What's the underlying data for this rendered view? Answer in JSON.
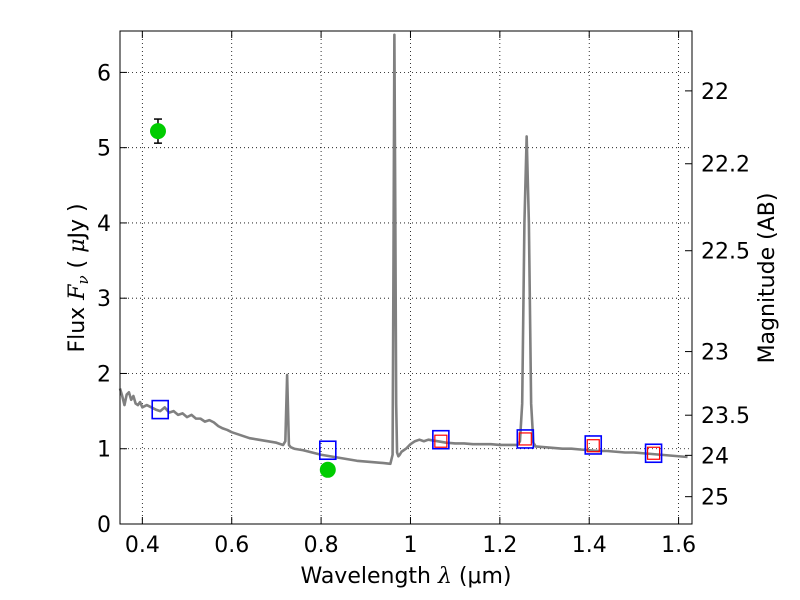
{
  "chart_data": {
    "type": "line",
    "xlabel": "Wavelength  λ (μm)",
    "ylabel": "Flux  Fν  ( μJy )",
    "ylabel_right": "Magnitude (AB)",
    "xlim": [
      0.35,
      1.63
    ],
    "ylim": [
      0,
      6.55
    ],
    "grid": true,
    "x_ticks": [
      {
        "value": 0.4,
        "label": "0.4"
      },
      {
        "value": 0.6,
        "label": "0.6"
      },
      {
        "value": 0.8,
        "label": "0.8"
      },
      {
        "value": 1.0,
        "label": "1"
      },
      {
        "value": 1.2,
        "label": "1.2"
      },
      {
        "value": 1.4,
        "label": "1.4"
      },
      {
        "value": 1.6,
        "label": "1.6"
      }
    ],
    "y_ticks": [
      {
        "value": 0,
        "label": "0"
      },
      {
        "value": 1,
        "label": "1"
      },
      {
        "value": 2,
        "label": "2"
      },
      {
        "value": 3,
        "label": "3"
      },
      {
        "value": 4,
        "label": "4"
      },
      {
        "value": 5,
        "label": "5"
      },
      {
        "value": 6,
        "label": "6"
      }
    ],
    "right_ticks": [
      {
        "value": 22,
        "label": "22"
      },
      {
        "value": 22.2,
        "label": "22.2"
      },
      {
        "value": 22.5,
        "label": "22.5"
      },
      {
        "value": 23,
        "label": "23"
      },
      {
        "value": 23.5,
        "label": "23.5"
      },
      {
        "value": 24,
        "label": "24"
      },
      {
        "value": 25,
        "label": "25"
      }
    ],
    "model_spectrum": {
      "color": "#808080",
      "x": [
        0.35,
        0.355,
        0.36,
        0.365,
        0.37,
        0.375,
        0.38,
        0.385,
        0.39,
        0.395,
        0.4,
        0.41,
        0.42,
        0.43,
        0.44,
        0.45,
        0.46,
        0.47,
        0.48,
        0.49,
        0.5,
        0.51,
        0.52,
        0.53,
        0.54,
        0.55,
        0.56,
        0.57,
        0.58,
        0.59,
        0.6,
        0.62,
        0.64,
        0.66,
        0.68,
        0.7,
        0.715,
        0.72,
        0.724,
        0.728,
        0.732,
        0.74,
        0.76,
        0.78,
        0.8,
        0.82,
        0.84,
        0.86,
        0.88,
        0.9,
        0.92,
        0.94,
        0.955,
        0.96,
        0.962,
        0.964,
        0.966,
        0.968,
        0.97,
        0.973,
        0.976,
        0.98,
        0.99,
        1.0,
        1.01,
        1.02,
        1.03,
        1.04,
        1.05,
        1.06,
        1.08,
        1.1,
        1.12,
        1.14,
        1.16,
        1.18,
        1.2,
        1.22,
        1.24,
        1.245,
        1.25,
        1.255,
        1.26,
        1.265,
        1.27,
        1.275,
        1.28,
        1.3,
        1.32,
        1.34,
        1.36,
        1.38,
        1.4,
        1.42,
        1.44,
        1.46,
        1.48,
        1.5,
        1.52,
        1.54,
        1.56,
        1.58,
        1.6,
        1.62
      ],
      "y": [
        1.8,
        1.7,
        1.58,
        1.72,
        1.75,
        1.65,
        1.7,
        1.6,
        1.58,
        1.62,
        1.55,
        1.58,
        1.55,
        1.52,
        1.5,
        1.55,
        1.48,
        1.5,
        1.45,
        1.47,
        1.42,
        1.45,
        1.4,
        1.4,
        1.36,
        1.38,
        1.35,
        1.3,
        1.27,
        1.25,
        1.22,
        1.18,
        1.14,
        1.12,
        1.1,
        1.08,
        1.05,
        1.1,
        1.98,
        1.05,
        1.02,
        1.0,
        0.98,
        0.95,
        0.92,
        0.9,
        0.88,
        0.86,
        0.84,
        0.83,
        0.82,
        0.81,
        0.8,
        0.92,
        3.5,
        6.5,
        4.2,
        1.6,
        0.95,
        0.9,
        0.92,
        0.96,
        1.0,
        1.06,
        1.1,
        1.12,
        1.1,
        1.12,
        1.11,
        1.1,
        1.08,
        1.07,
        1.07,
        1.06,
        1.06,
        1.06,
        1.05,
        1.05,
        1.05,
        1.1,
        1.6,
        4.0,
        5.15,
        4.0,
        1.6,
        1.08,
        1.03,
        1.02,
        1.01,
        1.0,
        1.0,
        0.99,
        0.98,
        0.97,
        0.97,
        0.96,
        0.95,
        0.95,
        0.94,
        0.93,
        0.92,
        0.91,
        0.9,
        0.89
      ]
    },
    "blue_squares": {
      "color": "#0000ff",
      "points": [
        {
          "x": 0.44,
          "y": 1.52
        },
        {
          "x": 0.815,
          "y": 0.98
        },
        {
          "x": 1.068,
          "y": 1.12
        },
        {
          "x": 1.257,
          "y": 1.13
        },
        {
          "x": 1.409,
          "y": 1.05
        },
        {
          "x": 1.544,
          "y": 0.94
        }
      ]
    },
    "red_squares": {
      "color": "#ff0000",
      "points": [
        {
          "x": 1.068,
          "y": 1.1
        },
        {
          "x": 1.257,
          "y": 1.13
        },
        {
          "x": 1.409,
          "y": 1.04
        },
        {
          "x": 1.544,
          "y": 0.94
        }
      ]
    },
    "green_points": {
      "color": "#00cc00",
      "points": [
        {
          "x": 0.435,
          "y": 5.22,
          "err": 0.16
        },
        {
          "x": 0.815,
          "y": 0.72,
          "err": 0.05
        }
      ]
    }
  }
}
